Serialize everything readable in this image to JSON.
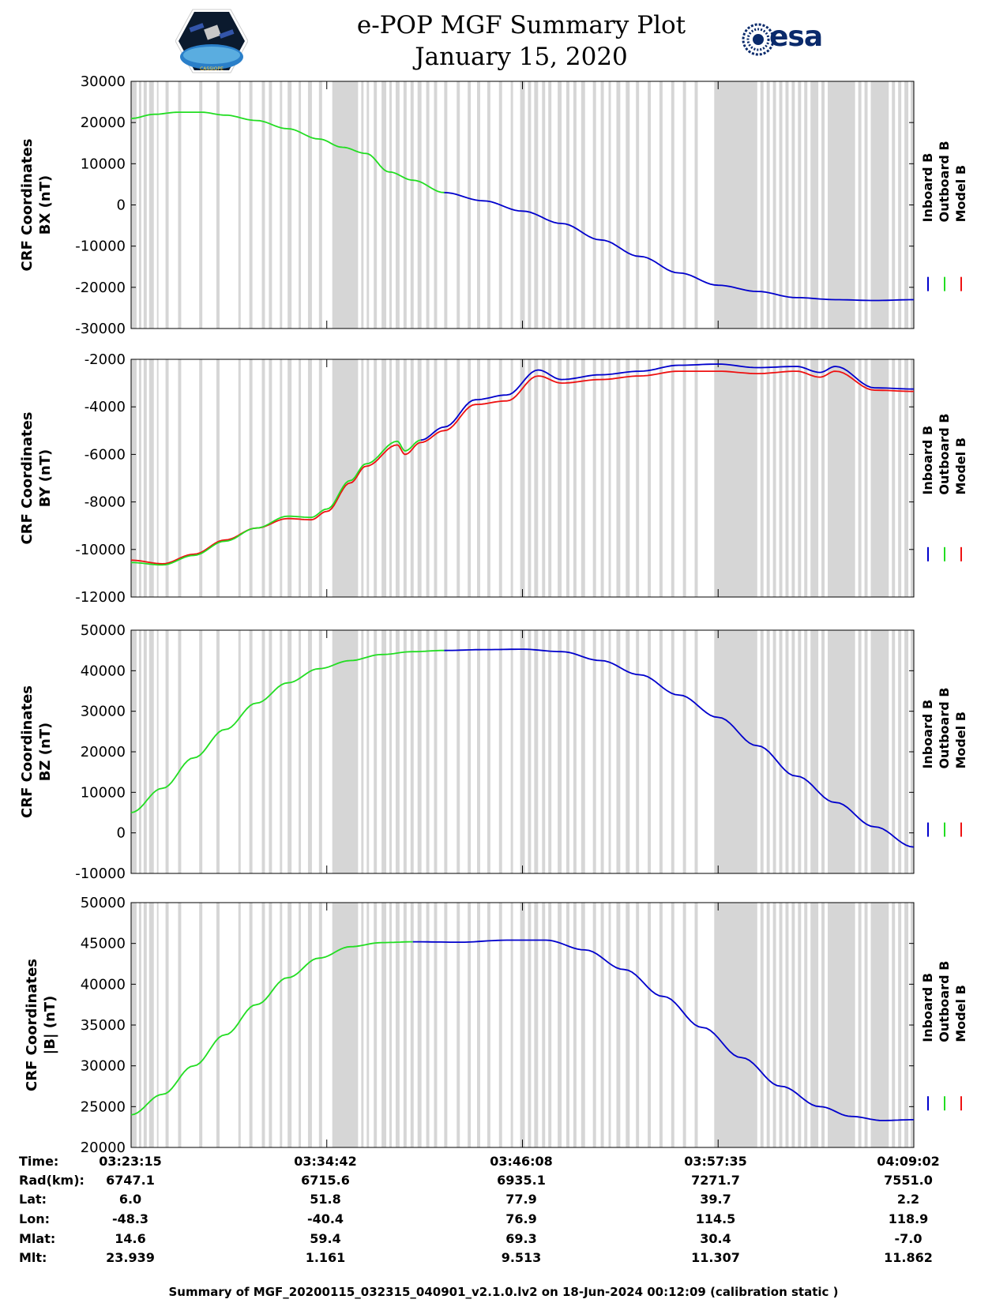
{
  "header": {
    "title_line1": "e-POP MGF Summary Plot",
    "title_line2": "January 15, 2020",
    "logo_left_caption": "CASSIOPE",
    "logo_right_text": "esa"
  },
  "legend": {
    "inboard": "Inboard B",
    "outboard": "Outboard B",
    "model": "Model B"
  },
  "colors": {
    "inboard": "#0000cc",
    "outboard": "#22dd22",
    "model": "#ee1111",
    "gap": "#d6d6d6"
  },
  "chart_data": [
    {
      "type": "line",
      "ylabel_line1": "CRF Coordinates",
      "ylabel_line2": "BX (nT)",
      "ylim": [
        -30000,
        30000
      ],
      "yticks": [
        "30000",
        "20000",
        "10000",
        "0",
        "-10000",
        "-20000",
        "-30000"
      ],
      "ytick_values": [
        30000,
        20000,
        10000,
        0,
        -10000,
        -20000,
        -30000
      ],
      "series": [
        {
          "name": "Outboard B",
          "x": [
            0,
            0.03,
            0.06,
            0.09,
            0.12,
            0.16,
            0.2,
            0.24,
            0.27,
            0.3,
            0.33,
            0.36,
            0.4
          ],
          "values": [
            21000,
            22000,
            22500,
            22500,
            21800,
            20500,
            18500,
            16000,
            14000,
            12500,
            8000,
            6000,
            3000
          ]
        },
        {
          "name": "Inboard B",
          "x": [
            0.4,
            0.45,
            0.5,
            0.55,
            0.6,
            0.65,
            0.7,
            0.75,
            0.8,
            0.85,
            0.9,
            0.95,
            1.0
          ],
          "values": [
            3000,
            1000,
            -1500,
            -4500,
            -8500,
            -12500,
            -16500,
            -19500,
            -21000,
            -22500,
            -23000,
            -23200,
            -23000
          ]
        }
      ]
    },
    {
      "type": "line",
      "ylabel_line1": "CRF Coordinates",
      "ylabel_line2": "BY (nT)",
      "ylim": [
        -12000,
        -2000
      ],
      "yticks": [
        "-2000",
        "-4000",
        "-6000",
        "-8000",
        "-10000",
        "-12000"
      ],
      "ytick_values": [
        -2000,
        -4000,
        -6000,
        -8000,
        -10000,
        -12000
      ],
      "series": [
        {
          "name": "Model B",
          "x": [
            0,
            0.04,
            0.08,
            0.12,
            0.16,
            0.2,
            0.23,
            0.25,
            0.28,
            0.3,
            0.34,
            0.35,
            0.37,
            0.4,
            0.44,
            0.48,
            0.52,
            0.55,
            0.6,
            0.65,
            0.7,
            0.75,
            0.8,
            0.85,
            0.88,
            0.9,
            0.95,
            1.0
          ],
          "values": [
            -10450,
            -10600,
            -10200,
            -9600,
            -9100,
            -8700,
            -8750,
            -8400,
            -7200,
            -6500,
            -5600,
            -6000,
            -5500,
            -5000,
            -3900,
            -3750,
            -2700,
            -3000,
            -2850,
            -2700,
            -2500,
            -2500,
            -2600,
            -2500,
            -2750,
            -2500,
            -3300,
            -3350
          ]
        },
        {
          "name": "Inboard B",
          "x": [
            0.37,
            0.4,
            0.44,
            0.48,
            0.52,
            0.55,
            0.6,
            0.65,
            0.7,
            0.75,
            0.8,
            0.85,
            0.88,
            0.9,
            0.95,
            1.0
          ],
          "values": [
            -5400,
            -4850,
            -3700,
            -3500,
            -2450,
            -2850,
            -2650,
            -2500,
            -2250,
            -2200,
            -2350,
            -2300,
            -2550,
            -2300,
            -3200,
            -3250
          ]
        },
        {
          "name": "Outboard B",
          "x": [
            0,
            0.04,
            0.08,
            0.12,
            0.16,
            0.2,
            0.23,
            0.25,
            0.28,
            0.3,
            0.34,
            0.35,
            0.37
          ],
          "values": [
            -10550,
            -10650,
            -10250,
            -9650,
            -9100,
            -8600,
            -8650,
            -8300,
            -7100,
            -6400,
            -5450,
            -5850,
            -5400
          ]
        }
      ]
    },
    {
      "type": "line",
      "ylabel_line1": "CRF Coordinates",
      "ylabel_line2": "BZ (nT)",
      "ylim": [
        -10000,
        50000
      ],
      "yticks": [
        "50000",
        "40000",
        "30000",
        "20000",
        "10000",
        "0",
        "-10000"
      ],
      "ytick_values": [
        50000,
        40000,
        30000,
        20000,
        10000,
        0,
        -10000
      ],
      "series": [
        {
          "name": "Outboard B",
          "x": [
            0,
            0.04,
            0.08,
            0.12,
            0.16,
            0.2,
            0.24,
            0.28,
            0.32,
            0.36,
            0.4
          ],
          "values": [
            5000,
            11000,
            18500,
            25500,
            32000,
            37000,
            40500,
            42500,
            44000,
            44700,
            45000
          ]
        },
        {
          "name": "Inboard B",
          "x": [
            0.4,
            0.45,
            0.5,
            0.55,
            0.6,
            0.65,
            0.7,
            0.75,
            0.8,
            0.85,
            0.9,
            0.95,
            1.0
          ],
          "values": [
            45000,
            45200,
            45300,
            44700,
            42500,
            39000,
            34000,
            28500,
            21500,
            14000,
            7500,
            1500,
            -3500
          ]
        }
      ]
    },
    {
      "type": "line",
      "ylabel_line1": "CRF Coordinates",
      "ylabel_line2": "|B| (nT)",
      "ylim": [
        20000,
        50000
      ],
      "yticks": [
        "50000",
        "45000",
        "40000",
        "35000",
        "30000",
        "25000",
        "20000"
      ],
      "ytick_values": [
        50000,
        45000,
        40000,
        35000,
        30000,
        25000,
        20000
      ],
      "series": [
        {
          "name": "Outboard B",
          "x": [
            0,
            0.04,
            0.08,
            0.12,
            0.16,
            0.2,
            0.24,
            0.28,
            0.32,
            0.36
          ],
          "values": [
            24000,
            26500,
            30000,
            33800,
            37500,
            40800,
            43200,
            44600,
            45100,
            45200
          ]
        },
        {
          "name": "Inboard B",
          "x": [
            0.36,
            0.42,
            0.48,
            0.53,
            0.58,
            0.63,
            0.68,
            0.73,
            0.78,
            0.83,
            0.88,
            0.92,
            0.96,
            1.0
          ],
          "values": [
            45200,
            45150,
            45400,
            45400,
            44200,
            41800,
            38500,
            34700,
            31000,
            27500,
            25000,
            23800,
            23300,
            23400
          ]
        }
      ]
    }
  ],
  "xaxis": {
    "ticks": [
      "03:23:15",
      "03:34:42",
      "03:46:08",
      "03:57:35",
      "04:09:02"
    ]
  },
  "info_table": {
    "labels": [
      "Time:",
      "Rad(km):",
      "Lat:",
      "Lon:",
      "Mlat:",
      "Mlt:"
    ],
    "columns": [
      [
        "03:23:15",
        "6747.1",
        "6.0",
        "-48.3",
        "14.6",
        "23.939"
      ],
      [
        "03:34:42",
        "6715.6",
        "51.8",
        "-40.4",
        "59.4",
        "1.161"
      ],
      [
        "03:46:08",
        "6935.1",
        "77.9",
        "76.9",
        "69.3",
        "9.513"
      ],
      [
        "03:57:35",
        "7271.7",
        "39.7",
        "114.5",
        "30.4",
        "11.307"
      ],
      [
        "04:09:02",
        "7551.0",
        "2.2",
        "118.9",
        "-7.0",
        "11.862"
      ]
    ]
  },
  "footer": "Summary of MGF_20200115_032315_040901_v2.1.0.lv2 on 18-Jun-2024 00:12:09 (calibration static )"
}
